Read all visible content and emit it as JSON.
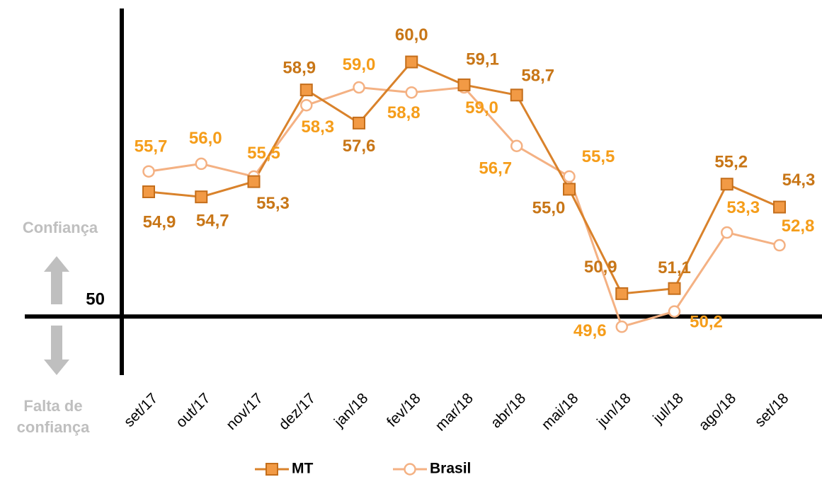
{
  "chart_data": {
    "type": "line",
    "categories": [
      "set/17",
      "out/17",
      "nov/17",
      "dez/17",
      "jan/18",
      "fev/18",
      "mar/18",
      "abr/18",
      "mai/18",
      "jun/18",
      "jul/18",
      "ago/18",
      "set/18"
    ],
    "series": [
      {
        "name": "MT",
        "color": "#d9822b",
        "marker": "square",
        "values": [
          54.9,
          54.7,
          55.3,
          58.9,
          57.6,
          60.0,
          59.1,
          58.7,
          55.0,
          50.9,
          51.1,
          55.2,
          54.3
        ],
        "value_labels": [
          "54,9",
          "54,7",
          "55,3",
          "58,9",
          "57,6",
          "60,0",
          "59,1",
          "58,7",
          "55,0",
          "50,9",
          "51,1",
          "55,2",
          "54,3"
        ]
      },
      {
        "name": "Brasil",
        "color": "#f4b183",
        "marker": "circle",
        "values": [
          55.7,
          56.0,
          55.5,
          58.3,
          59.0,
          58.8,
          59.0,
          56.7,
          55.5,
          49.6,
          50.2,
          53.3,
          52.8
        ],
        "value_labels": [
          "55,7",
          "56,0",
          "55,5",
          "58,3",
          "59,0",
          "58,8",
          "59,0",
          "56,7",
          "55,5",
          "49,6",
          "50,2",
          "53,3",
          "52,8"
        ]
      }
    ],
    "ylim": [
      47.7,
      62.1
    ],
    "yticks": [
      50
    ],
    "annotations": [
      "Confiança",
      "Falta de",
      "confiança"
    ],
    "legend": "bottom"
  }
}
